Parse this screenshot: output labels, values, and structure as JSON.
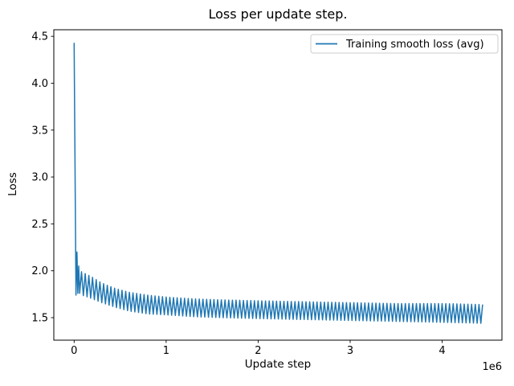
{
  "chart_data": {
    "type": "line",
    "title": "Loss per update step.",
    "xlabel": "Update step",
    "ylabel": "Loss",
    "x_offset_label": "1e6",
    "xlim": [
      -221000,
      4650000
    ],
    "ylim": [
      1.26,
      4.57
    ],
    "xticks": [
      0,
      1000000,
      2000000,
      3000000,
      4000000
    ],
    "xtick_labels": [
      "0",
      "1",
      "2",
      "3",
      "4"
    ],
    "yticks": [
      1.5,
      2.0,
      2.5,
      3.0,
      3.5,
      4.0,
      4.5
    ],
    "ytick_labels": [
      "1.5",
      "2.0",
      "2.5",
      "3.0",
      "3.5",
      "4.0",
      "4.5"
    ],
    "grid": false,
    "legend_position": "upper right",
    "series": [
      {
        "name": "Training smooth loss (avg)",
        "color": "#1f77b4",
        "line_width": 1.5,
        "x_start": 0,
        "x_end": 4440000,
        "description": "Starts at ~4.43, drops almost vertically to ~1.74, a few early spikes to ~2.2, then a dense sawtooth oscillation (period ~40k steps) whose envelope slowly decays toward ~1.64 (upper) / ~1.44 (lower) by 4.44e6 steps",
        "initial_points": [
          [
            0,
            4.43
          ],
          [
            20000,
            1.74
          ],
          [
            30000,
            2.2
          ],
          [
            40000,
            1.76
          ],
          [
            50000,
            2.05
          ],
          [
            60000,
            1.76
          ]
        ],
        "oscillation_start": 80000,
        "oscillation_period_steps": 40000,
        "upper_envelope": [
          [
            80000,
            1.99
          ],
          [
            120000,
            1.97
          ],
          [
            200000,
            1.93
          ],
          [
            300000,
            1.87
          ],
          [
            450000,
            1.81
          ],
          [
            600000,
            1.77
          ],
          [
            800000,
            1.74
          ],
          [
            1000000,
            1.72
          ],
          [
            1300000,
            1.7
          ],
          [
            1600000,
            1.69
          ],
          [
            2000000,
            1.68
          ],
          [
            2500000,
            1.67
          ],
          [
            3000000,
            1.66
          ],
          [
            3500000,
            1.65
          ],
          [
            4000000,
            1.65
          ],
          [
            4440000,
            1.64
          ]
        ],
        "lower_envelope": [
          [
            80000,
            1.74
          ],
          [
            120000,
            1.73
          ],
          [
            200000,
            1.7
          ],
          [
            300000,
            1.66
          ],
          [
            450000,
            1.61
          ],
          [
            600000,
            1.57
          ],
          [
            800000,
            1.54
          ],
          [
            1000000,
            1.53
          ],
          [
            1300000,
            1.51
          ],
          [
            1600000,
            1.5
          ],
          [
            2000000,
            1.49
          ],
          [
            2500000,
            1.48
          ],
          [
            3000000,
            1.47
          ],
          [
            3500000,
            1.46
          ],
          [
            4000000,
            1.45
          ],
          [
            4440000,
            1.44
          ]
        ]
      }
    ]
  },
  "colors": {
    "line": "#1f77b4",
    "spine": "#000000",
    "tick": "#000000",
    "legend_border": "#cccccc",
    "background": "#ffffff"
  }
}
